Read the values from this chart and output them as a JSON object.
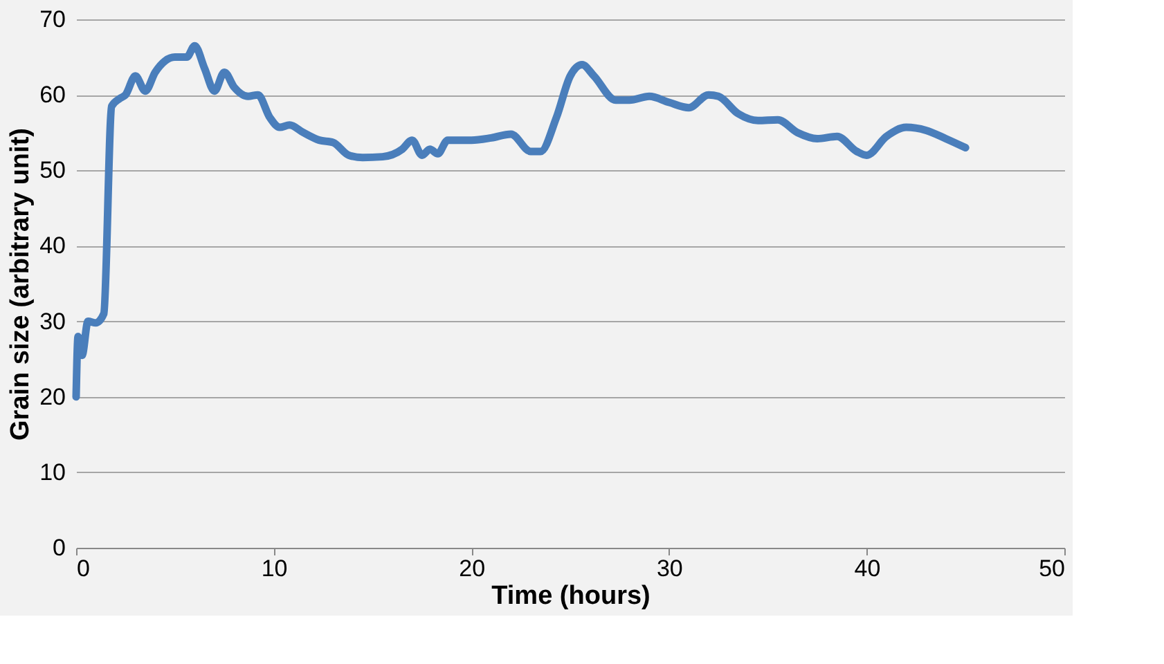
{
  "chart_data": {
    "type": "line",
    "xlabel": "Time (hours)",
    "ylabel": "Grain size (arbitrary unit)",
    "x": [
      0,
      0.1,
      0.3,
      0.6,
      1.0,
      1.4,
      1.8,
      2.2,
      2.5,
      3.0,
      3.5,
      4.0,
      4.5,
      5.0,
      5.6,
      6.0,
      6.5,
      7.0,
      7.5,
      8.0,
      8.7,
      9.2,
      9.8,
      10.3,
      10.8,
      11.5,
      12.3,
      13.0,
      13.8,
      14.5,
      15.5,
      16.5,
      17.0,
      17.5,
      17.9,
      18.3,
      18.8,
      20,
      21,
      22,
      23.0,
      23.5,
      24.3,
      25.0,
      25.6,
      26.2,
      27.3,
      28.0,
      29,
      30,
      31,
      32,
      32.5,
      33.5,
      34.5,
      35.5,
      36.5,
      37.5,
      38.5,
      39.5,
      40,
      41,
      42,
      43,
      44,
      45
    ],
    "series": [
      {
        "color": "#4a7ebb",
        "values": [
          20,
          28,
          25.5,
          30,
          29.8,
          31,
          58.5,
          59.5,
          60,
          62.5,
          60.5,
          63,
          64.5,
          65,
          65,
          66.5,
          63.5,
          60.5,
          63,
          61,
          59.8,
          60,
          57,
          55.7,
          56,
          55,
          54,
          53.7,
          52,
          51.7,
          51.8,
          52.8,
          54,
          52,
          52.8,
          52.2,
          54,
          54,
          54.3,
          54.8,
          52.5,
          52.5,
          57,
          62.5,
          64,
          62.5,
          59.3,
          59.3,
          59.8,
          59,
          58.3,
          60,
          59.8,
          57.5,
          56.6,
          56.7,
          55,
          54.2,
          54.5,
          52.5,
          52,
          54.5,
          55.7,
          55.3,
          54.2,
          53
        ]
      }
    ],
    "xlim": [
      0,
      50
    ],
    "xticks": [
      0,
      10,
      20,
      30,
      40,
      50
    ],
    "ylim": [
      0,
      70
    ],
    "yticks": [
      0,
      10,
      20,
      30,
      40,
      50,
      60,
      70
    ],
    "grid": "y",
    "legend": false,
    "marker": "none",
    "line_style": "solid"
  }
}
